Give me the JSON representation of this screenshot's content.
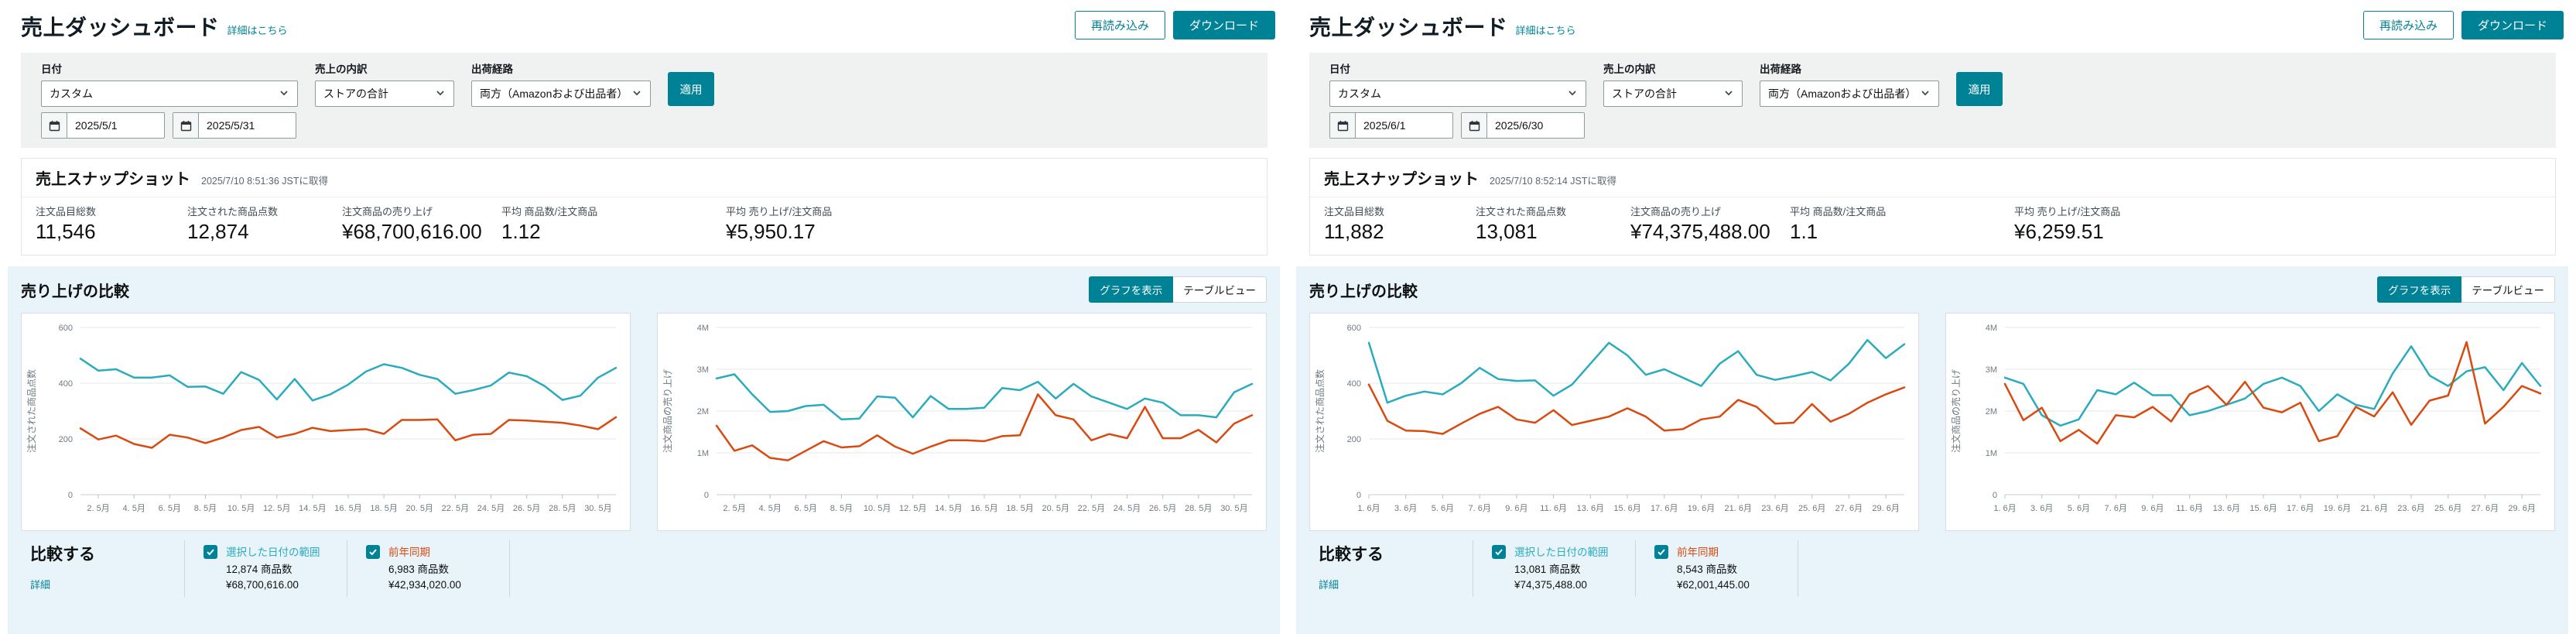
{
  "colors": {
    "brand_teal": "#008296",
    "chart_teal": "#2aacbd",
    "chart_red": "#d94a10",
    "comparison_bg": "#e8f4fa",
    "filter_bg": "#f0f2f2"
  },
  "panels": [
    {
      "header": {
        "title": "売上ダッシュボード",
        "details_link": "詳細はこちら",
        "reload_label": "再読み込み",
        "download_label": "ダウンロード"
      },
      "filters": {
        "date_label": "日付",
        "date_range_value": "カスタム",
        "date_from": "2025/5/1",
        "date_to": "2025/5/31",
        "breakdown_label": "売上の内訳",
        "breakdown_value": "ストアの合計",
        "channel_label": "出荷経路",
        "channel_value": "両方（Amazonおよび出品者）",
        "apply_label": "適用"
      },
      "snapshot": {
        "title": "売上スナップショット",
        "timestamp": "2025/7/10 8:51:36 JSTに取得",
        "metrics": [
          {
            "label": "注文品目総数",
            "value": "11,546"
          },
          {
            "label": "注文された商品点数",
            "value": "12,874"
          },
          {
            "label": "注文商品の売り上げ",
            "value": "¥68,700,616.00"
          },
          {
            "label": "平均 商品数/注文商品",
            "value": "1.12"
          },
          {
            "label": "平均 売り上げ/注文商品",
            "value": "¥5,950.17"
          }
        ]
      },
      "comparison": {
        "title": "売り上げの比較",
        "graph_button": "グラフを表示",
        "table_button": "テーブルビュー",
        "compare_label": "比較する",
        "details_label": "詳細",
        "legend": [
          {
            "label": "選択した日付の範囲",
            "units": "12,874 商品数",
            "sales": "¥68,700,616.00",
            "color": "#2aacbd"
          },
          {
            "label": "前年同期",
            "units": "6,983 商品数",
            "sales": "¥42,934,020.00",
            "color": "#d94a10"
          }
        ]
      },
      "charts": [
        {
          "type": "line",
          "ylabel": "注文された商品点数",
          "ylim": [
            0,
            600
          ],
          "yticks": [
            0,
            200,
            400,
            600
          ],
          "ytick_labels": [
            "0",
            "200",
            "400",
            "600"
          ],
          "x_tick_labels": [
            "2. 5月",
            "4. 5月",
            "6. 5月",
            "8. 5月",
            "10. 5月",
            "12. 5月",
            "14. 5月",
            "16. 5月",
            "18. 5月",
            "20. 5月",
            "22. 5月",
            "24. 5月",
            "26. 5月",
            "28. 5月",
            "30. 5月"
          ],
          "x_tick_indices": [
            1,
            3,
            5,
            7,
            9,
            11,
            13,
            15,
            17,
            19,
            21,
            23,
            25,
            27,
            29
          ],
          "series": [
            {
              "name": "選択した日付の範囲",
              "color": "#2aacbd",
              "values": [
                488,
                445,
                450,
                420,
                420,
                428,
                387,
                388,
                362,
                440,
                412,
                342,
                415,
                338,
                360,
                395,
                442,
                468,
                455,
                430,
                415,
                362,
                375,
                392,
                438,
                425,
                390,
                340,
                355,
                420,
                455
              ]
            },
            {
              "name": "前年同期",
              "color": "#d94a10",
              "values": [
                238,
                198,
                212,
                182,
                168,
                215,
                205,
                185,
                205,
                232,
                243,
                205,
                218,
                240,
                228,
                232,
                235,
                218,
                268,
                268,
                270,
                195,
                215,
                218,
                268,
                266,
                262,
                258,
                248,
                235,
                278
              ]
            }
          ]
        },
        {
          "type": "line",
          "ylabel": "注文商品の売り上げ",
          "ylim": [
            0,
            4000000
          ],
          "yticks": [
            0,
            1000000,
            2000000,
            3000000,
            4000000
          ],
          "ytick_labels": [
            "0",
            "1M",
            "2M",
            "3M",
            "4M"
          ],
          "x_tick_labels": [
            "2. 5月",
            "4. 5月",
            "6. 5月",
            "8. 5月",
            "10. 5月",
            "12. 5月",
            "14. 5月",
            "16. 5月",
            "18. 5月",
            "20. 5月",
            "22. 5月",
            "24. 5月",
            "26. 5月",
            "28. 5月",
            "30. 5月"
          ],
          "x_tick_indices": [
            1,
            3,
            5,
            7,
            9,
            11,
            13,
            15,
            17,
            19,
            21,
            23,
            25,
            27,
            29
          ],
          "series": [
            {
              "name": "選択した日付の範囲",
              "color": "#2aacbd",
              "values": [
                2780000,
                2880000,
                2400000,
                1980000,
                2000000,
                2120000,
                2150000,
                1800000,
                1820000,
                2350000,
                2320000,
                1850000,
                2360000,
                2050000,
                2050000,
                2080000,
                2550000,
                2500000,
                2700000,
                2300000,
                2650000,
                2350000,
                2200000,
                2050000,
                2300000,
                2200000,
                1900000,
                1900000,
                1850000,
                2450000,
                2650000
              ]
            },
            {
              "name": "前年同期",
              "color": "#d94a10",
              "values": [
                1650000,
                1050000,
                1180000,
                880000,
                820000,
                1050000,
                1280000,
                1130000,
                1160000,
                1420000,
                1150000,
                980000,
                1150000,
                1300000,
                1300000,
                1280000,
                1400000,
                1420000,
                2400000,
                1900000,
                1800000,
                1300000,
                1450000,
                1350000,
                2100000,
                1350000,
                1350000,
                1550000,
                1250000,
                1700000,
                1900000
              ]
            }
          ]
        }
      ]
    },
    {
      "header": {
        "title": "売上ダッシュボード",
        "details_link": "詳細はこちら",
        "reload_label": "再読み込み",
        "download_label": "ダウンロード"
      },
      "filters": {
        "date_label": "日付",
        "date_range_value": "カスタム",
        "date_from": "2025/6/1",
        "date_to": "2025/6/30",
        "breakdown_label": "売上の内訳",
        "breakdown_value": "ストアの合計",
        "channel_label": "出荷経路",
        "channel_value": "両方（Amazonおよび出品者）",
        "apply_label": "適用"
      },
      "snapshot": {
        "title": "売上スナップショット",
        "timestamp": "2025/7/10 8:52:14 JSTに取得",
        "metrics": [
          {
            "label": "注文品目総数",
            "value": "11,882"
          },
          {
            "label": "注文された商品点数",
            "value": "13,081"
          },
          {
            "label": "注文商品の売り上げ",
            "value": "¥74,375,488.00"
          },
          {
            "label": "平均 商品数/注文商品",
            "value": "1.1"
          },
          {
            "label": "平均 売り上げ/注文商品",
            "value": "¥6,259.51"
          }
        ]
      },
      "comparison": {
        "title": "売り上げの比較",
        "graph_button": "グラフを表示",
        "table_button": "テーブルビュー",
        "compare_label": "比較する",
        "details_label": "詳細",
        "legend": [
          {
            "label": "選択した日付の範囲",
            "units": "13,081 商品数",
            "sales": "¥74,375,488.00",
            "color": "#2aacbd"
          },
          {
            "label": "前年同期",
            "units": "8,543 商品数",
            "sales": "¥62,001,445.00",
            "color": "#d94a10"
          }
        ]
      },
      "charts": [
        {
          "type": "line",
          "ylabel": "注文された商品点数",
          "ylim": [
            0,
            600
          ],
          "yticks": [
            0,
            200,
            400,
            600
          ],
          "ytick_labels": [
            "0",
            "200",
            "400",
            "600"
          ],
          "x_tick_labels": [
            "1. 6月",
            "3. 6月",
            "5. 6月",
            "7. 6月",
            "9. 6月",
            "11. 6月",
            "13. 6月",
            "15. 6月",
            "17. 6月",
            "19. 6月",
            "21. 6月",
            "23. 6月",
            "25. 6月",
            "27. 6月",
            "29. 6月"
          ],
          "x_tick_indices": [
            0,
            2,
            4,
            6,
            8,
            10,
            12,
            14,
            16,
            18,
            20,
            22,
            24,
            26,
            28
          ],
          "series": [
            {
              "name": "選択した日付の範囲",
              "color": "#2aacbd",
              "values": [
                545,
                330,
                355,
                370,
                360,
                400,
                455,
                415,
                408,
                410,
                355,
                395,
                470,
                545,
                500,
                430,
                450,
                420,
                390,
                470,
                515,
                430,
                412,
                425,
                440,
                410,
                470,
                555,
                490,
                540
              ]
            },
            {
              "name": "前年同期",
              "color": "#d94a10",
              "values": [
                395,
                265,
                230,
                228,
                218,
                255,
                290,
                315,
                270,
                258,
                303,
                250,
                265,
                280,
                310,
                280,
                230,
                235,
                270,
                280,
                340,
                315,
                255,
                258,
                325,
                262,
                290,
                330,
                360,
                385
              ]
            }
          ]
        },
        {
          "type": "line",
          "ylabel": "注文商品の売り上げ",
          "ylim": [
            0,
            4000000
          ],
          "yticks": [
            0,
            1000000,
            2000000,
            3000000,
            4000000
          ],
          "ytick_labels": [
            "0",
            "1M",
            "2M",
            "3M",
            "4M"
          ],
          "x_tick_labels": [
            "1. 6月",
            "3. 6月",
            "5. 6月",
            "7. 6月",
            "9. 6月",
            "11. 6月",
            "13. 6月",
            "15. 6月",
            "17. 6月",
            "19. 6月",
            "21. 6月",
            "23. 6月",
            "25. 6月",
            "27. 6月",
            "29. 6月"
          ],
          "x_tick_indices": [
            0,
            2,
            4,
            6,
            8,
            10,
            12,
            14,
            16,
            18,
            20,
            22,
            24,
            26,
            28
          ],
          "series": [
            {
              "name": "選択した日付の範囲",
              "color": "#2aacbd",
              "values": [
                2800000,
                2650000,
                1900000,
                1650000,
                1800000,
                2500000,
                2400000,
                2680000,
                2380000,
                2380000,
                1900000,
                2000000,
                2150000,
                2300000,
                2650000,
                2800000,
                2600000,
                2000000,
                2400000,
                2150000,
                2050000,
                2900000,
                3550000,
                2850000,
                2600000,
                2950000,
                3050000,
                2500000,
                3150000,
                2600000
              ]
            },
            {
              "name": "前年同期",
              "color": "#d94a10",
              "values": [
                2650000,
                1780000,
                2080000,
                1280000,
                1550000,
                1220000,
                1900000,
                1850000,
                2100000,
                1750000,
                2400000,
                2600000,
                2150000,
                2700000,
                2080000,
                1970000,
                2200000,
                1280000,
                1400000,
                2100000,
                1870000,
                2450000,
                1670000,
                2250000,
                2370000,
                3650000,
                1700000,
                2100000,
                2600000,
                2420000
              ]
            }
          ]
        }
      ]
    }
  ]
}
